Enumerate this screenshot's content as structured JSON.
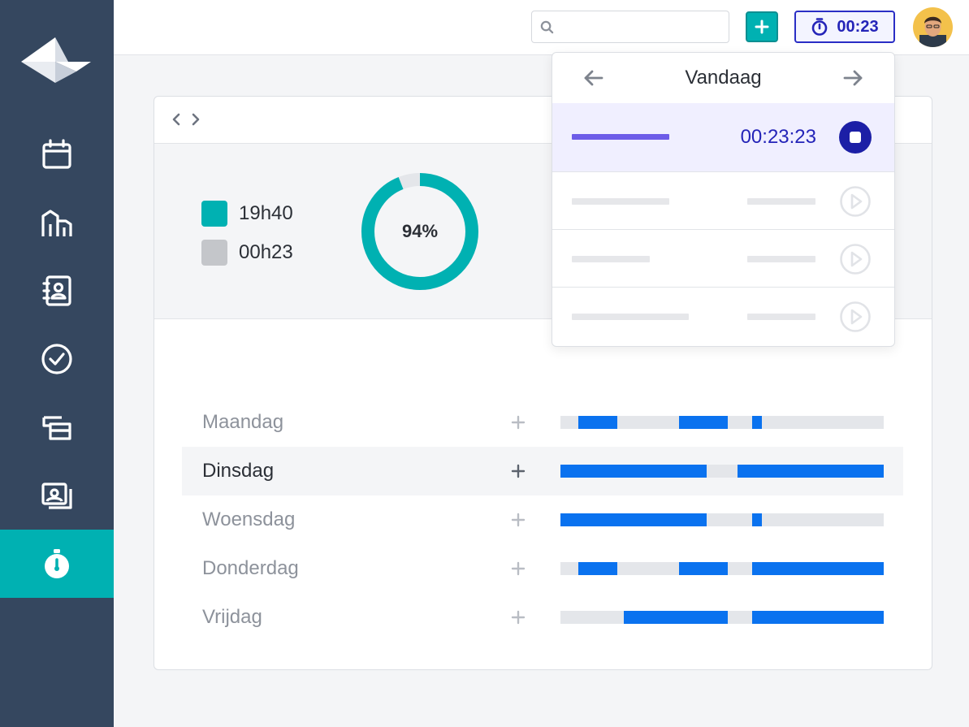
{
  "sidebar": {
    "logo": "paper-plane-logo",
    "items": [
      {
        "icon": "calendar-icon"
      },
      {
        "icon": "buildings-icon"
      },
      {
        "icon": "contacts-icon"
      },
      {
        "icon": "check-circle-icon"
      },
      {
        "icon": "stack-icon"
      },
      {
        "icon": "invoice-icon"
      },
      {
        "icon": "stopwatch-icon",
        "active": true
      }
    ]
  },
  "topbar": {
    "search_placeholder": "",
    "add_label": "+",
    "timer_value": "00:23"
  },
  "summary": {
    "legend": [
      {
        "label": "19h40",
        "color": "#00b1b2"
      },
      {
        "label": "00h23",
        "color": "#c4c6ca"
      }
    ],
    "percent_label": "94%",
    "percent_value": 0.94
  },
  "days": [
    {
      "label": "Maandag",
      "highlight": false,
      "segments": [
        [
          0.055,
          0.175
        ],
        [
          0.367,
          0.518
        ],
        [
          0.593,
          0.623
        ]
      ]
    },
    {
      "label": "Dinsdag",
      "highlight": true,
      "segments": [
        [
          0.0,
          0.452
        ],
        [
          0.548,
          1.0
        ]
      ]
    },
    {
      "label": "Woensdag",
      "highlight": false,
      "segments": [
        [
          0.0,
          0.452
        ],
        [
          0.593,
          0.623
        ]
      ]
    },
    {
      "label": "Donderdag",
      "highlight": false,
      "segments": [
        [
          0.055,
          0.175
        ],
        [
          0.367,
          0.518
        ],
        [
          0.593,
          1.0
        ]
      ]
    },
    {
      "label": "Vrijdag",
      "highlight": false,
      "segments": [
        [
          0.196,
          0.518
        ],
        [
          0.593,
          1.0
        ]
      ]
    }
  ],
  "dropdown": {
    "title": "Vandaag",
    "active_entry_time": "00:23:23",
    "entries": [
      {
        "state": "running"
      },
      {
        "state": "idle"
      },
      {
        "state": "idle"
      },
      {
        "state": "idle"
      }
    ]
  },
  "colors": {
    "sidebar": "#35475f",
    "accent": "#00b1b2",
    "timer": "#2424b8",
    "bar": "#0a72ef"
  }
}
